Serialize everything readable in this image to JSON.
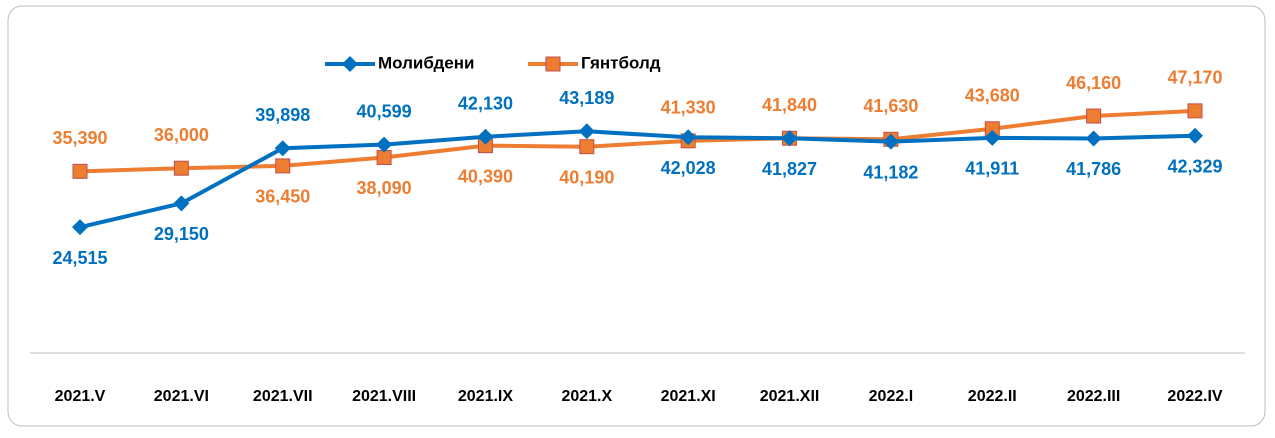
{
  "chart_data": {
    "type": "line",
    "categories": [
      "2021.V",
      "2021.VI",
      "2021.VII",
      "2021.VIII",
      "2021.IX",
      "2021.X",
      "2021.XI",
      "2021.XII",
      "2022.I",
      "2022.II",
      "2022.III",
      "2022.IV"
    ],
    "series": [
      {
        "name": "Молибдени",
        "color": "#0070c0",
        "marker": "diamond",
        "values": [
          24515,
          29150,
          39898,
          40599,
          42130,
          43189,
          42028,
          41827,
          41182,
          41911,
          41786,
          42329
        ],
        "value_labels": [
          "24,515",
          "29,150",
          "39,898",
          "40,599",
          "42,130",
          "43,189",
          "42,028",
          "41,827",
          "41,182",
          "41,911",
          "41,786",
          "42,329"
        ]
      },
      {
        "name": "Гянтболд",
        "color": "#ed7d31",
        "marker": "square",
        "values": [
          35390,
          36000,
          36450,
          38090,
          40390,
          40190,
          41330,
          41840,
          41630,
          43680,
          46160,
          47170
        ],
        "value_labels": [
          "35,390",
          "36,000",
          "36,450",
          "38,090",
          "40,390",
          "40,190",
          "41,330",
          "41,840",
          "41,630",
          "43,680",
          "46,160",
          "47,170"
        ]
      }
    ],
    "ylim": [
      0,
      60000
    ],
    "legend": "top"
  }
}
